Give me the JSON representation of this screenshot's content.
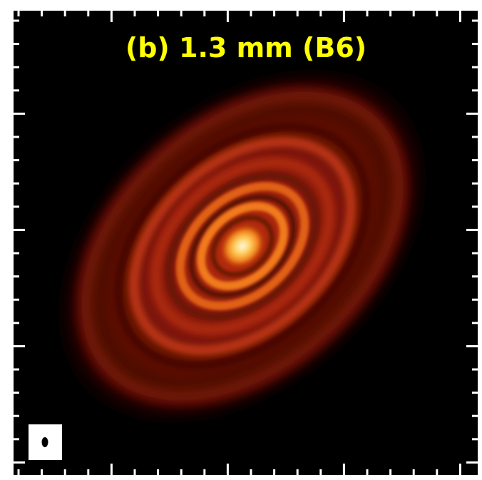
{
  "title": "(b) 1.3 mm (B6)"
}
